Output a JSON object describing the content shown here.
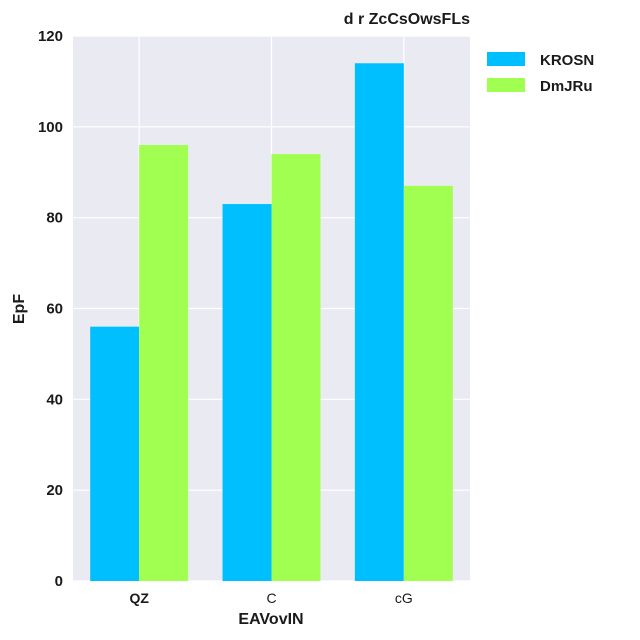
{
  "chart_data": {
    "type": "bar",
    "title": "d r ZcCsOwsFLs",
    "xlabel": "EAVovIN",
    "ylabel": "EpF",
    "categories": [
      "QZ",
      "C",
      "cG"
    ],
    "category_bold": [
      true,
      false,
      false
    ],
    "series": [
      {
        "name": "KROSN",
        "values": [
          56,
          83,
          114
        ],
        "color": "#00bfff"
      },
      {
        "name": "DmJRu",
        "values": [
          96,
          94,
          87
        ],
        "color": "#a0ff50"
      }
    ],
    "ylim": [
      0,
      120
    ],
    "yticks": [
      "0",
      "20",
      "40",
      "60",
      "80",
      "100",
      "120"
    ],
    "grid": true,
    "legend_position": "outside-top-right"
  }
}
